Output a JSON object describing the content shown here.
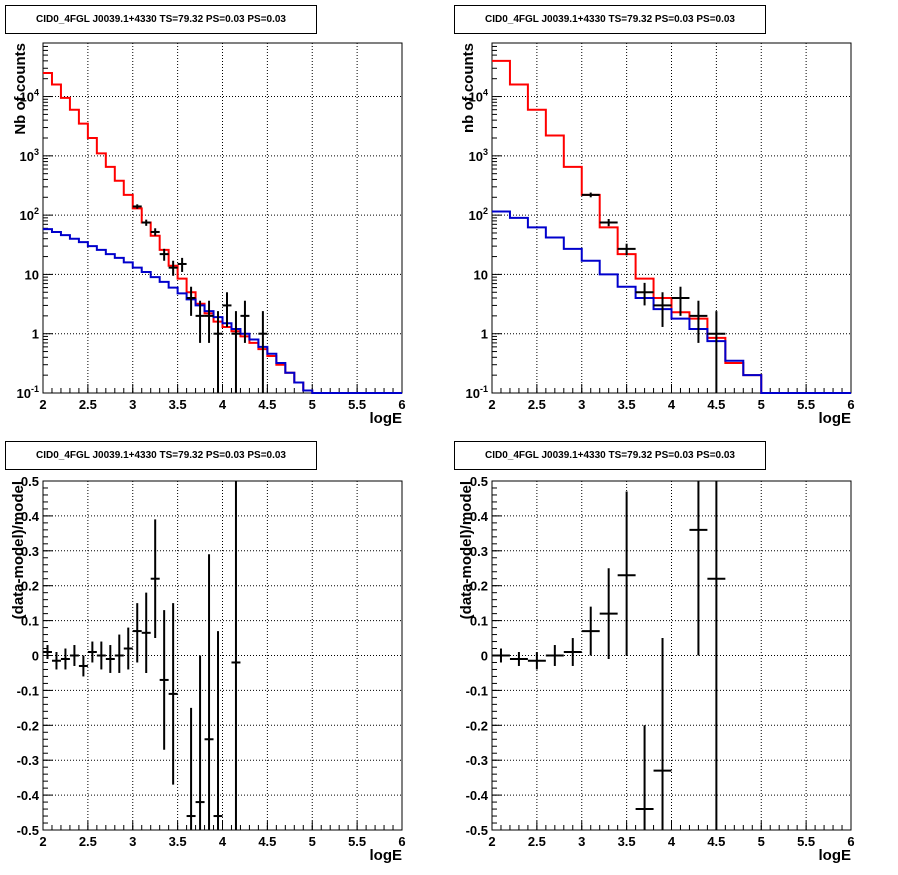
{
  "chart_data": [
    {
      "type": "line",
      "title": "CID0_4FGL J0039.1+4330 TS=79.32 PS=0.03 PS=0.03",
      "xlabel": "logE",
      "ylabel": "Nb of counts",
      "xlim": [
        2,
        6
      ],
      "ylim": [
        0.1,
        80000
      ],
      "yscale": "log",
      "grid": true,
      "xticks": [
        "2",
        "2.5",
        "3",
        "3.5",
        "4",
        "4.5",
        "5",
        "5.5",
        "6"
      ],
      "yticks": [
        {
          "value": 0.1,
          "base": "10",
          "exp": "-1"
        },
        {
          "value": 1,
          "label": "1"
        },
        {
          "value": 10,
          "label": "10"
        },
        {
          "value": 100,
          "base": "10",
          "exp": "2"
        },
        {
          "value": 1000,
          "base": "10",
          "exp": "3"
        },
        {
          "value": 10000,
          "base": "10",
          "exp": "4"
        }
      ],
      "series": [
        {
          "color": "#ff0000",
          "kind": "step",
          "bin_edges": [
            2,
            2.1,
            2.2,
            2.3,
            2.4,
            2.5,
            2.6,
            2.7,
            2.8,
            2.9,
            3.0,
            3.1,
            3.2,
            3.3,
            3.4,
            3.5,
            3.6,
            3.7,
            3.8,
            3.9,
            4.0,
            4.1,
            4.2,
            4.3,
            4.4,
            4.5,
            4.6,
            4.7,
            4.8,
            4.9,
            5.0,
            5.1,
            5.2,
            5.3,
            5.4,
            5.5,
            5.6,
            5.7,
            5.8,
            5.9,
            6.0
          ],
          "values": [
            25000,
            16000,
            9500,
            6000,
            3500,
            2000,
            1100,
            650,
            380,
            220,
            130,
            75,
            45,
            26,
            14,
            8.5,
            5,
            3.2,
            2.2,
            1.6,
            1.3,
            1.1,
            0.9,
            0.7,
            0.55,
            0.42,
            0.3,
            0.22,
            0.15,
            0.11,
            0.1,
            0.1,
            0.1,
            0.1,
            0.1,
            0.1,
            0.1,
            0.1,
            0.1,
            0.1
          ]
        },
        {
          "color": "#0000cc",
          "kind": "step",
          "bin_edges": [
            2,
            2.1,
            2.2,
            2.3,
            2.4,
            2.5,
            2.6,
            2.7,
            2.8,
            2.9,
            3.0,
            3.1,
            3.2,
            3.3,
            3.4,
            3.5,
            3.6,
            3.7,
            3.8,
            3.9,
            4.0,
            4.1,
            4.2,
            4.3,
            4.4,
            4.5,
            4.6,
            4.7,
            4.8,
            4.9,
            5.0,
            5.1,
            5.2,
            5.3,
            5.4,
            5.5,
            5.6,
            5.7,
            5.8,
            5.9,
            6.0
          ],
          "values": [
            58,
            52,
            46,
            40,
            35,
            30,
            26,
            22,
            19,
            16,
            13,
            11,
            9,
            7.5,
            6,
            4.8,
            3.8,
            3.0,
            2.4,
            1.9,
            1.5,
            1.2,
            1.0,
            0.8,
            0.6,
            0.46,
            0.32,
            0.22,
            0.15,
            0.11,
            0.1,
            0.1,
            0.1,
            0.1,
            0.1,
            0.1,
            0.1,
            0.1,
            0.1,
            0.1
          ]
        },
        {
          "color": "#000000",
          "kind": "points",
          "points": [
            {
              "x": 3.05,
              "y": 140,
              "ylo": 128,
              "yhi": 152
            },
            {
              "x": 3.15,
              "y": 75,
              "ylo": 66,
              "yhi": 84
            },
            {
              "x": 3.25,
              "y": 52,
              "ylo": 45,
              "yhi": 60
            },
            {
              "x": 3.35,
              "y": 22,
              "ylo": 17,
              "yhi": 27
            },
            {
              "x": 3.45,
              "y": 13,
              "ylo": 9.5,
              "yhi": 17
            },
            {
              "x": 3.55,
              "y": 15,
              "ylo": 11,
              "yhi": 19
            },
            {
              "x": 3.65,
              "y": 4,
              "ylo": 2.0,
              "yhi": 6.2
            },
            {
              "x": 3.75,
              "y": 2,
              "ylo": 0.7,
              "yhi": 3.6
            },
            {
              "x": 3.85,
              "y": 2,
              "ylo": 0.7,
              "yhi": 3.6
            },
            {
              "x": 3.95,
              "y": 1,
              "ylo": 0.1,
              "yhi": 2.4
            },
            {
              "x": 4.05,
              "y": 3,
              "ylo": 1.3,
              "yhi": 5
            },
            {
              "x": 4.15,
              "y": 1,
              "ylo": 0.1,
              "yhi": 2.4
            },
            {
              "x": 4.25,
              "y": 2,
              "ylo": 0.7,
              "yhi": 3.6
            },
            {
              "x": 4.45,
              "y": 1,
              "ylo": 0.1,
              "yhi": 2.4
            }
          ]
        }
      ]
    },
    {
      "type": "line",
      "title": "CID0_4FGL J0039.1+4330 TS=79.32 PS=0.03 PS=0.03",
      "xlabel": "logE",
      "ylabel": "nb of counts",
      "xlim": [
        2,
        6
      ],
      "ylim": [
        0.1,
        80000
      ],
      "yscale": "log",
      "grid": true,
      "xticks": [
        "2",
        "2.5",
        "3",
        "3.5",
        "4",
        "4.5",
        "5",
        "5.5",
        "6"
      ],
      "yticks": [
        {
          "value": 0.1,
          "base": "10",
          "exp": "-1"
        },
        {
          "value": 1,
          "label": "1"
        },
        {
          "value": 10,
          "label": "10"
        },
        {
          "value": 100,
          "base": "10",
          "exp": "2"
        },
        {
          "value": 1000,
          "base": "10",
          "exp": "3"
        },
        {
          "value": 10000,
          "base": "10",
          "exp": "4"
        }
      ],
      "series": [
        {
          "color": "#ff0000",
          "kind": "step",
          "bin_edges": [
            2,
            2.2,
            2.4,
            2.6,
            2.8,
            3.0,
            3.2,
            3.4,
            3.6,
            3.8,
            4.0,
            4.2,
            4.4,
            4.6,
            4.8,
            5.0,
            5.2,
            5.4,
            5.6,
            5.8,
            6.0
          ],
          "values": [
            40000,
            16000,
            6000,
            2200,
            650,
            220,
            62,
            22,
            8.5,
            4.0,
            2.3,
            1.8,
            0.85,
            0.32,
            0.2,
            0.1,
            0.1,
            0.1,
            0.1,
            0.1
          ]
        },
        {
          "color": "#0000cc",
          "kind": "step",
          "bin_edges": [
            2,
            2.2,
            2.4,
            2.6,
            2.8,
            3.0,
            3.2,
            3.4,
            3.6,
            3.8,
            4.0,
            4.2,
            4.4,
            4.6,
            4.8,
            5.0,
            5.2,
            5.4,
            5.6,
            5.8,
            6.0
          ],
          "values": [
            115,
            90,
            62,
            42,
            27,
            17,
            10,
            6.2,
            4.0,
            2.6,
            1.8,
            1.2,
            0.75,
            0.35,
            0.2,
            0.1,
            0.1,
            0.1,
            0.1,
            0.1
          ]
        },
        {
          "color": "#000000",
          "kind": "points",
          "points": [
            {
              "x": 3.1,
              "y": 220,
              "ylo": 200,
              "yhi": 240
            },
            {
              "x": 3.3,
              "y": 75,
              "ylo": 65,
              "yhi": 86
            },
            {
              "x": 3.5,
              "y": 27,
              "ylo": 21,
              "yhi": 33
            },
            {
              "x": 3.7,
              "y": 5,
              "ylo": 3,
              "yhi": 7.2
            },
            {
              "x": 3.9,
              "y": 3,
              "ylo": 1.3,
              "yhi": 5
            },
            {
              "x": 4.1,
              "y": 4,
              "ylo": 2.0,
              "yhi": 6.2
            },
            {
              "x": 4.3,
              "y": 2,
              "ylo": 0.7,
              "yhi": 3.6
            },
            {
              "x": 4.5,
              "y": 1,
              "ylo": 0.1,
              "yhi": 2.4
            }
          ]
        }
      ]
    },
    {
      "type": "scatter",
      "title": "CID0_4FGL J0039.1+4330 TS=79.32 PS=0.03 PS=0.03",
      "xlabel": "logE",
      "ylabel": "(data-model)/model",
      "xlim": [
        2,
        6
      ],
      "ylim": [
        -0.5,
        0.5
      ],
      "grid": true,
      "xticks": [
        "2",
        "2.5",
        "3",
        "3.5",
        "4",
        "4.5",
        "5",
        "5.5",
        "6"
      ],
      "yticks": [
        "-0.5",
        "-0.4",
        "-0.3",
        "-0.2",
        "-0.1",
        "0",
        "0.1",
        "0.2",
        "0.3",
        "0.4",
        "0.5"
      ],
      "xerr": 0.05,
      "points": [
        {
          "x": 2.05,
          "y": 0.01,
          "ylo": -0.01,
          "yhi": 0.03
        },
        {
          "x": 2.15,
          "y": -0.015,
          "ylo": -0.04,
          "yhi": 0.01
        },
        {
          "x": 2.25,
          "y": -0.01,
          "ylo": -0.04,
          "yhi": 0.02
        },
        {
          "x": 2.35,
          "y": 0.0,
          "ylo": -0.03,
          "yhi": 0.03
        },
        {
          "x": 2.45,
          "y": -0.03,
          "ylo": -0.06,
          "yhi": 0.0
        },
        {
          "x": 2.55,
          "y": 0.01,
          "ylo": -0.02,
          "yhi": 0.04
        },
        {
          "x": 2.65,
          "y": 0.0,
          "ylo": -0.04,
          "yhi": 0.04
        },
        {
          "x": 2.75,
          "y": -0.01,
          "ylo": -0.05,
          "yhi": 0.03
        },
        {
          "x": 2.85,
          "y": 0.0,
          "ylo": -0.05,
          "yhi": 0.06
        },
        {
          "x": 2.95,
          "y": 0.02,
          "ylo": -0.04,
          "yhi": 0.08
        },
        {
          "x": 3.05,
          "y": 0.07,
          "ylo": -0.02,
          "yhi": 0.15
        },
        {
          "x": 3.15,
          "y": 0.065,
          "ylo": -0.05,
          "yhi": 0.18
        },
        {
          "x": 3.25,
          "y": 0.22,
          "ylo": 0.05,
          "yhi": 0.39
        },
        {
          "x": 3.35,
          "y": -0.07,
          "ylo": -0.27,
          "yhi": 0.13
        },
        {
          "x": 3.45,
          "y": -0.11,
          "ylo": -0.37,
          "yhi": 0.15
        },
        {
          "x": 3.65,
          "y": -0.46,
          "ylo": -0.5,
          "yhi": -0.15
        },
        {
          "x": 3.75,
          "y": -0.42,
          "ylo": -0.5,
          "yhi": 0.0
        },
        {
          "x": 3.85,
          "y": -0.24,
          "ylo": -0.5,
          "yhi": 0.29
        },
        {
          "x": 3.95,
          "y": -0.46,
          "ylo": -0.5,
          "yhi": 0.07
        },
        {
          "x": 4.15,
          "y": -0.02,
          "ylo": -0.5,
          "yhi": 0.5
        }
      ]
    },
    {
      "type": "scatter",
      "title": "CID0_4FGL J0039.1+4330 TS=79.32 PS=0.03 PS=0.03",
      "xlabel": "logE",
      "ylabel": "(data-model)/model",
      "xlim": [
        2,
        6
      ],
      "ylim": [
        -0.5,
        0.5
      ],
      "grid": true,
      "xticks": [
        "2",
        "2.5",
        "3",
        "3.5",
        "4",
        "4.5",
        "5",
        "5.5",
        "6"
      ],
      "yticks": [
        "-0.5",
        "-0.4",
        "-0.3",
        "-0.2",
        "-0.1",
        "0",
        "0.1",
        "0.2",
        "0.3",
        "0.4",
        "0.5"
      ],
      "xerr": 0.1,
      "points": [
        {
          "x": 2.1,
          "y": 0.0,
          "ylo": -0.02,
          "yhi": 0.02
        },
        {
          "x": 2.3,
          "y": -0.01,
          "ylo": -0.03,
          "yhi": 0.01
        },
        {
          "x": 2.5,
          "y": -0.015,
          "ylo": -0.04,
          "yhi": 0.01
        },
        {
          "x": 2.7,
          "y": 0.0,
          "ylo": -0.03,
          "yhi": 0.03
        },
        {
          "x": 2.9,
          "y": 0.01,
          "ylo": -0.03,
          "yhi": 0.05
        },
        {
          "x": 3.1,
          "y": 0.07,
          "ylo": 0.0,
          "yhi": 0.14
        },
        {
          "x": 3.3,
          "y": 0.12,
          "ylo": -0.01,
          "yhi": 0.25
        },
        {
          "x": 3.5,
          "y": 0.23,
          "ylo": 0.0,
          "yhi": 0.47
        },
        {
          "x": 3.7,
          "y": -0.44,
          "ylo": -0.5,
          "yhi": -0.2
        },
        {
          "x": 3.9,
          "y": -0.33,
          "ylo": -0.5,
          "yhi": 0.05
        },
        {
          "x": 4.3,
          "y": 0.36,
          "ylo": 0.0,
          "yhi": 0.5
        },
        {
          "x": 4.5,
          "y": 0.22,
          "ylo": -0.5,
          "yhi": 0.5
        }
      ]
    }
  ]
}
